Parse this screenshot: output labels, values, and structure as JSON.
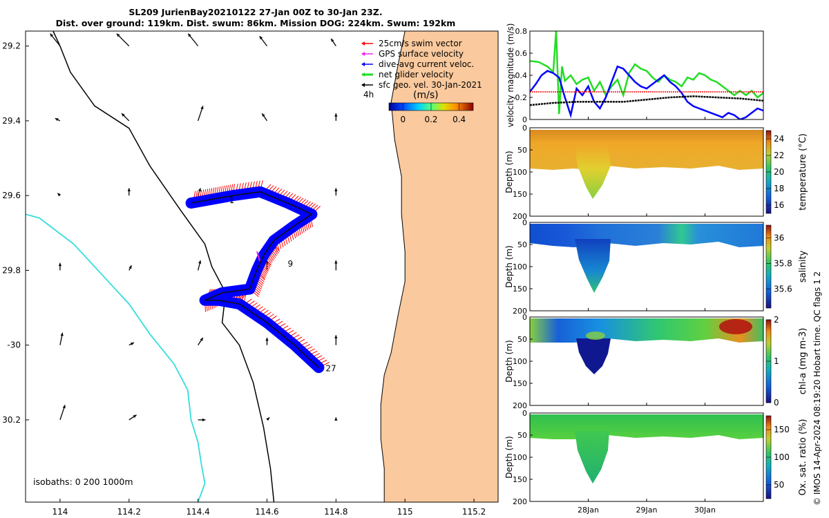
{
  "title": {
    "line1": "SL209 JurienBay20210122 27-Jan 00Z to 30-Jan 23Z.",
    "line2": "Dist. over ground: 119km. Dist. swum: 86km. Mission DOG: 224km. Swum: 192km"
  },
  "credit": "© IMOS 14-Apr-2024 08:19:20 Hobart time. QC flags 1  2",
  "colors": {
    "land": "#fac99d",
    "coast100": "#000000",
    "coast1000": "#33dddd",
    "swim": "#ff0000",
    "gps": "#ee22ee",
    "current": "#0000ff",
    "net": "#22dd22",
    "geo": "#000000"
  },
  "chart_data": [
    {
      "type": "map",
      "name": "track-map",
      "xlim": [
        113.9,
        115.27
      ],
      "ylim": [
        -30.42,
        -29.16
      ],
      "xticks": [
        114,
        114.2,
        114.4,
        114.6,
        114.8,
        115,
        115.2
      ],
      "xtick_labels": [
        "114",
        "114.2",
        "114.4",
        "114.6",
        "114.8",
        "115",
        "115.2"
      ],
      "yticks": [
        -29.2,
        -29.4,
        -29.6,
        -29.8,
        -30,
        -30.2
      ],
      "ytick_labels": [
        "29.2",
        "29.4",
        "29.6",
        "29.8",
        "-30",
        "30.2"
      ],
      "isobaths_label": "isobaths: 0   200  1000m",
      "legend": [
        {
          "label": "25cm/s swim vector",
          "color": "#ff0000"
        },
        {
          "label": "GPS surface velocity",
          "color": "#ee22ee"
        },
        {
          "label": "dive-avg current veloc.",
          "color": "#0000ff"
        },
        {
          "label": "net glider velocity",
          "color": "#22dd22"
        },
        {
          "label": "sfc geo. vel. 30-Jan-2021",
          "color": "#000000"
        }
      ],
      "colorbar": {
        "label": "(m/s)",
        "time_label": "4h",
        "range": [
          -0.1,
          0.5
        ],
        "ticks": [
          0,
          0.2,
          0.4
        ],
        "tick_labels": [
          "0",
          "0.2",
          "0.4"
        ]
      },
      "day_labels": [
        {
          "text": "27",
          "lon": 114.77,
          "lat": -30.07
        },
        {
          "text": "1",
          "lon": 114.49,
          "lat": -29.62
        },
        {
          "text": "9",
          "lon": 114.66,
          "lat": -29.79
        }
      ],
      "track": [
        [
          114.75,
          -30.06
        ],
        [
          114.68,
          -30.0
        ],
        [
          114.6,
          -29.94
        ],
        [
          114.52,
          -29.89
        ],
        [
          114.46,
          -29.88
        ],
        [
          114.42,
          -29.88
        ],
        [
          114.47,
          -29.86
        ],
        [
          114.55,
          -29.85
        ],
        [
          114.57,
          -29.8
        ],
        [
          114.59,
          -29.76
        ],
        [
          114.62,
          -29.72
        ],
        [
          114.68,
          -29.68
        ],
        [
          114.73,
          -29.65
        ],
        [
          114.66,
          -29.62
        ],
        [
          114.58,
          -29.59
        ],
        [
          114.5,
          -29.6
        ],
        [
          114.44,
          -29.61
        ],
        [
          114.38,
          -29.62
        ]
      ],
      "isobath_200": [
        [
          113.98,
          -29.16
        ],
        [
          114.0,
          -29.2
        ],
        [
          114.03,
          -29.27
        ],
        [
          114.1,
          -29.36
        ],
        [
          114.2,
          -29.42
        ],
        [
          114.26,
          -29.52
        ],
        [
          114.35,
          -29.64
        ],
        [
          114.42,
          -29.73
        ],
        [
          114.44,
          -29.79
        ],
        [
          114.48,
          -29.86
        ],
        [
          114.47,
          -29.94
        ],
        [
          114.52,
          -30.0
        ],
        [
          114.56,
          -30.1
        ],
        [
          114.59,
          -30.22
        ],
        [
          114.61,
          -30.33
        ],
        [
          114.62,
          -30.42
        ]
      ],
      "isobath_1000": [
        [
          113.9,
          -29.65
        ],
        [
          113.94,
          -29.66
        ],
        [
          114.04,
          -29.73
        ],
        [
          114.12,
          -29.81
        ],
        [
          114.2,
          -29.89
        ],
        [
          114.26,
          -29.97
        ],
        [
          114.33,
          -30.05
        ],
        [
          114.37,
          -30.12
        ],
        [
          114.38,
          -30.2
        ],
        [
          114.4,
          -30.26
        ],
        [
          114.41,
          -30.32
        ],
        [
          114.42,
          -30.37
        ],
        [
          114.4,
          -30.42
        ]
      ],
      "coastline": [
        [
          115.0,
          -29.16
        ],
        [
          114.98,
          -29.25
        ],
        [
          114.96,
          -29.35
        ],
        [
          114.97,
          -29.45
        ],
        [
          114.99,
          -29.55
        ],
        [
          114.99,
          -29.65
        ],
        [
          115.0,
          -29.75
        ],
        [
          115.0,
          -29.83
        ],
        [
          114.98,
          -29.92
        ],
        [
          114.96,
          -30.02
        ],
        [
          114.94,
          -30.08
        ],
        [
          114.93,
          -30.16
        ],
        [
          114.93,
          -30.25
        ],
        [
          114.94,
          -30.33
        ],
        [
          114.94,
          -30.42
        ]
      ],
      "geo_arrows": [
        {
          "lon": 114.0,
          "lat": -29.2,
          "u": -0.08,
          "v": 0.1
        },
        {
          "lon": 114.2,
          "lat": -29.2,
          "u": -0.1,
          "v": 0.1
        },
        {
          "lon": 114.4,
          "lat": -29.2,
          "u": -0.08,
          "v": 0.1
        },
        {
          "lon": 114.6,
          "lat": -29.2,
          "u": -0.06,
          "v": 0.08
        },
        {
          "lon": 114.8,
          "lat": -29.2,
          "u": -0.04,
          "v": 0.06
        },
        {
          "lon": 114.0,
          "lat": -29.4,
          "u": -0.04,
          "v": 0.02
        },
        {
          "lon": 114.2,
          "lat": -29.4,
          "u": -0.06,
          "v": 0.06
        },
        {
          "lon": 114.4,
          "lat": -29.4,
          "u": 0.04,
          "v": 0.12
        },
        {
          "lon": 114.6,
          "lat": -29.4,
          "u": -0.04,
          "v": 0.06
        },
        {
          "lon": 114.8,
          "lat": -29.4,
          "u": 0.0,
          "v": 0.06
        },
        {
          "lon": 114.0,
          "lat": -29.6,
          "u": -0.02,
          "v": 0.02
        },
        {
          "lon": 114.2,
          "lat": -29.6,
          "u": 0.0,
          "v": 0.06
        },
        {
          "lon": 114.4,
          "lat": -29.6,
          "u": 0.02,
          "v": 0.06
        },
        {
          "lon": 114.6,
          "lat": -29.6,
          "u": 0.0,
          "v": 0.06
        },
        {
          "lon": 114.8,
          "lat": -29.6,
          "u": 0.0,
          "v": 0.06
        },
        {
          "lon": 114.0,
          "lat": -29.8,
          "u": 0.0,
          "v": 0.06
        },
        {
          "lon": 114.2,
          "lat": -29.8,
          "u": 0.02,
          "v": 0.04
        },
        {
          "lon": 114.4,
          "lat": -29.8,
          "u": 0.02,
          "v": 0.08
        },
        {
          "lon": 114.6,
          "lat": -29.8,
          "u": 0.0,
          "v": 0.08
        },
        {
          "lon": 114.8,
          "lat": -29.8,
          "u": 0.0,
          "v": 0.08
        },
        {
          "lon": 114.0,
          "lat": -30.0,
          "u": 0.02,
          "v": 0.1
        },
        {
          "lon": 114.2,
          "lat": -30.0,
          "u": 0.04,
          "v": 0.02
        },
        {
          "lon": 114.4,
          "lat": -30.0,
          "u": 0.04,
          "v": 0.06
        },
        {
          "lon": 114.6,
          "lat": -30.0,
          "u": 0.0,
          "v": 0.06
        },
        {
          "lon": 114.8,
          "lat": -30.0,
          "u": 0.0,
          "v": 0.08
        },
        {
          "lon": 114.0,
          "lat": -30.2,
          "u": 0.04,
          "v": 0.12
        },
        {
          "lon": 114.2,
          "lat": -30.2,
          "u": 0.06,
          "v": 0.04
        },
        {
          "lon": 114.4,
          "lat": -30.2,
          "u": 0.06,
          "v": 0.0
        },
        {
          "lon": 114.6,
          "lat": -30.2,
          "u": 0.02,
          "v": 0.02
        },
        {
          "lon": 114.8,
          "lat": -30.2,
          "u": 0.0,
          "v": 0.02
        }
      ]
    },
    {
      "type": "line",
      "name": "velocity-timeseries",
      "ylabel": "velocity magnitude (m/s)",
      "xlim": [
        0,
        4.0
      ],
      "ylim": [
        0,
        0.8
      ],
      "yticks": [
        0,
        0.2,
        0.4,
        0.6,
        0.8
      ],
      "ytick_labels": [
        "0",
        "0.2",
        "0.4",
        "0.6",
        "0.8"
      ],
      "series": [
        {
          "name": "net glider velocity",
          "color": "#22dd22",
          "x": [
            0,
            0.15,
            0.3,
            0.4,
            0.45,
            0.5,
            0.55,
            0.6,
            0.7,
            0.8,
            0.9,
            1.0,
            1.1,
            1.2,
            1.3,
            1.4,
            1.5,
            1.6,
            1.7,
            1.8,
            1.9,
            2.0,
            2.1,
            2.2,
            2.3,
            2.4,
            2.5,
            2.6,
            2.7,
            2.8,
            2.9,
            3.0,
            3.1,
            3.2,
            3.3,
            3.4,
            3.5,
            3.6,
            3.7,
            3.8,
            3.9,
            4.0
          ],
          "y": [
            0.53,
            0.52,
            0.48,
            0.43,
            0.8,
            0.05,
            0.48,
            0.35,
            0.4,
            0.32,
            0.36,
            0.38,
            0.26,
            0.34,
            0.22,
            0.3,
            0.36,
            0.22,
            0.42,
            0.5,
            0.46,
            0.44,
            0.38,
            0.34,
            0.4,
            0.36,
            0.34,
            0.3,
            0.38,
            0.36,
            0.42,
            0.4,
            0.36,
            0.34,
            0.3,
            0.26,
            0.22,
            0.26,
            0.22,
            0.26,
            0.2,
            0.24
          ]
        },
        {
          "name": "dive-avg current veloc.",
          "color": "#0000ff",
          "x": [
            0,
            0.1,
            0.2,
            0.3,
            0.4,
            0.5,
            0.6,
            0.7,
            0.8,
            0.9,
            1.0,
            1.1,
            1.2,
            1.3,
            1.4,
            1.5,
            1.6,
            1.7,
            1.8,
            1.9,
            2.0,
            2.1,
            2.2,
            2.3,
            2.4,
            2.5,
            2.6,
            2.7,
            2.8,
            2.9,
            3.0,
            3.1,
            3.2,
            3.3,
            3.4,
            3.5,
            3.6,
            3.7,
            3.8,
            3.9,
            4.0
          ],
          "y": [
            0.25,
            0.32,
            0.4,
            0.44,
            0.42,
            0.38,
            0.2,
            0.04,
            0.28,
            0.22,
            0.3,
            0.16,
            0.1,
            0.2,
            0.34,
            0.48,
            0.46,
            0.4,
            0.34,
            0.3,
            0.28,
            0.32,
            0.36,
            0.4,
            0.34,
            0.3,
            0.24,
            0.16,
            0.12,
            0.1,
            0.08,
            0.06,
            0.04,
            0.02,
            0.06,
            0.04,
            0.0,
            0.02,
            0.06,
            0.1,
            0.08
          ]
        },
        {
          "name": "swim speed",
          "color": "#ff0000",
          "x": [
            0,
            4.0
          ],
          "y": [
            0.25,
            0.25
          ]
        },
        {
          "name": "sfc geo. vel.",
          "color": "#000000",
          "x": [
            0,
            0.4,
            0.8,
            1.2,
            1.6,
            2.0,
            2.4,
            2.8,
            3.2,
            3.6,
            4.0
          ],
          "y": [
            0.13,
            0.15,
            0.16,
            0.16,
            0.16,
            0.18,
            0.2,
            0.21,
            0.2,
            0.19,
            0.17
          ]
        }
      ]
    },
    {
      "type": "heatmap",
      "name": "temperature-section",
      "ylabel": "Depth (m)",
      "cbar_label": "temperature (°C)",
      "ylim": [
        0,
        200
      ],
      "yticks": [
        0,
        50,
        100,
        150,
        200
      ],
      "ytick_labels": [
        "0",
        "50",
        "100",
        "150",
        "200"
      ],
      "cbar_range": [
        15,
        25
      ],
      "cbar_ticks": [
        16,
        18,
        20,
        22,
        24
      ],
      "cbar_tick_labels": [
        "16",
        "18",
        "20",
        "22",
        "24"
      ]
    },
    {
      "type": "heatmap",
      "name": "salinity-section",
      "ylabel": "Depth (m)",
      "cbar_label": "salinity",
      "ylim": [
        0,
        200
      ],
      "yticks": [
        0,
        50,
        100,
        150,
        200
      ],
      "ytick_labels": [
        "0",
        "50",
        "100",
        "150",
        "200"
      ],
      "cbar_range": [
        35.45,
        36.1
      ],
      "cbar_ticks": [
        35.6,
        35.8,
        36
      ],
      "cbar_tick_labels": [
        "35.6",
        "35.8",
        "36"
      ]
    },
    {
      "type": "heatmap",
      "name": "chla-section",
      "ylabel": "Depth (m)",
      "cbar_label": "chl-a (mg m-3)",
      "ylim": [
        0,
        200
      ],
      "yticks": [
        0,
        50,
        100,
        150,
        200
      ],
      "ytick_labels": [
        "0",
        "50",
        "100",
        "150",
        "200"
      ],
      "cbar_range": [
        0,
        2
      ],
      "cbar_ticks": [
        0,
        1,
        2
      ],
      "cbar_tick_labels": [
        "0",
        "1",
        "2"
      ]
    },
    {
      "type": "heatmap",
      "name": "oxygen-section",
      "ylabel": "Depth (m)",
      "cbar_label": "Ox. sat. ratio (%)",
      "ylim": [
        0,
        200
      ],
      "yticks": [
        0,
        50,
        100,
        150,
        200
      ],
      "ytick_labels": [
        "0",
        "50",
        "100",
        "150",
        "200"
      ],
      "cbar_range": [
        25,
        175
      ],
      "cbar_ticks": [
        50,
        100,
        150
      ],
      "cbar_tick_labels": [
        "50",
        "100",
        "150"
      ]
    }
  ],
  "time_axis": {
    "xlim": [
      0,
      4.0
    ],
    "ticks": [
      1.0,
      2.0,
      3.0
    ],
    "tick_labels": [
      "28Jan",
      "29Jan",
      "30Jan"
    ]
  }
}
